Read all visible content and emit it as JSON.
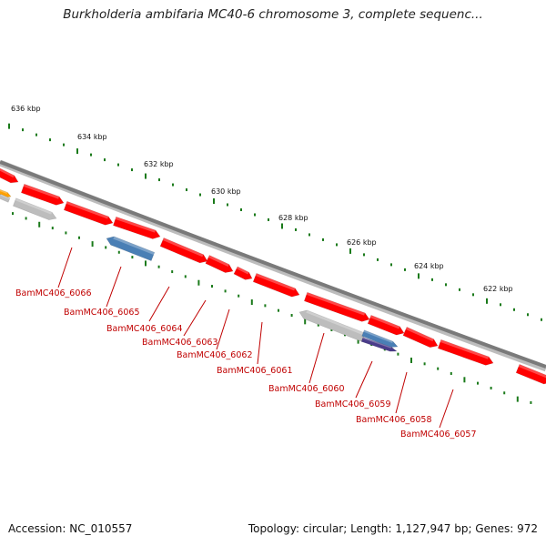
{
  "title": "Burkholderia ambifaria MC40-6 chromosome 3, complete sequenc...",
  "footer": {
    "accession": "Accession: NC_010557",
    "summary": "Topology: circular; Length: 1,127,947 bp; Genes: 972"
  },
  "colors": {
    "backbone": "#7a7a7a",
    "gene_red": "#ff0000",
    "gene_grey": "#bdbdbd",
    "gene_blue": "#4a7fb5",
    "gene_purple": "#4a3c8a",
    "gene_orange": "#ffa000",
    "tick_green": "#1a7a1a",
    "label_red": "#c00000"
  },
  "kbp_labels": [
    "636 kbp",
    "634 kbp",
    "632 kbp",
    "630 kbp",
    "628 kbp",
    "626 kbp",
    "624 kbp",
    "622 kbp"
  ],
  "gene_labels": [
    "BamMC406_6066",
    "BamMC406_6065",
    "BamMC406_6064",
    "BamMC406_6063",
    "BamMC406_6062",
    "BamMC406_6061",
    "BamMC406_6060",
    "BamMC406_6059",
    "BamMC406_6058",
    "BamMC406_6057"
  ]
}
